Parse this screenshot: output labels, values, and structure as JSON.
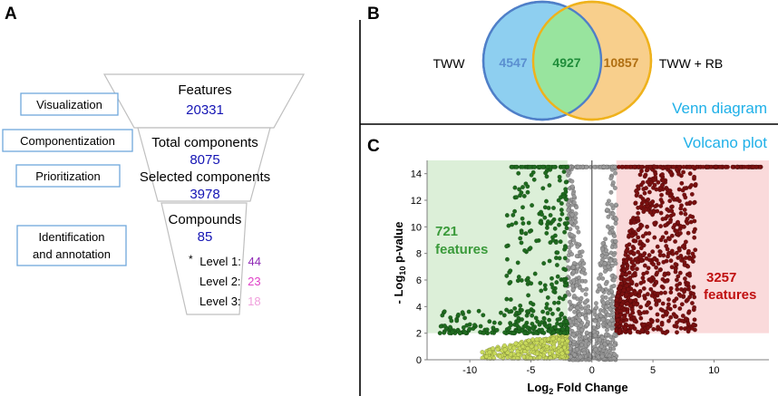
{
  "panel_a": {
    "letter": "A",
    "stages": [
      {
        "label": "Visualization"
      },
      {
        "label": "Componentization"
      },
      {
        "label": "Prioritization"
      },
      {
        "label_lines": [
          "Identification",
          "and annotation"
        ]
      }
    ],
    "funnel": {
      "features": {
        "title": "Features",
        "value": "20331"
      },
      "total_components": {
        "title": "Total components",
        "value": "8075"
      },
      "selected_components": {
        "title": "Selected components",
        "value": "3978"
      },
      "compounds": {
        "title": "Compounds",
        "value": "85"
      },
      "levels": [
        {
          "marker": "*",
          "label": "Level 1:",
          "value": "44"
        },
        {
          "label": "Level 2:",
          "value": "23"
        },
        {
          "label": "Level 3:",
          "value": "18"
        }
      ]
    }
  },
  "panel_b": {
    "letter": "B",
    "title": "Venn diagram",
    "left_label": "TWW",
    "right_label": "TWW + RB",
    "left_only": "4547",
    "overlap": "4927",
    "right_only": "10857"
  },
  "panel_c": {
    "letter": "C",
    "title": "Volcano plot",
    "left_annotation": {
      "value": "721",
      "text": "features"
    },
    "right_annotation": {
      "value": "3257",
      "text": "features"
    }
  },
  "chart_data": {
    "type": "scatter",
    "title": "Volcano plot",
    "xlabel": "Log2 Fold Change",
    "ylabel": "- Log10 p-value",
    "xlabel_parts": {
      "base": "Log",
      "sub": "2",
      "rest": " Fold Change"
    },
    "ylabel_parts": {
      "pre": "- Log",
      "sub": "10",
      "rest": " p-value"
    },
    "xlim": [
      -13.5,
      14.5
    ],
    "ylim": [
      0,
      15
    ],
    "xticks": [
      -10,
      -5,
      0,
      5,
      10
    ],
    "yticks": [
      0,
      2,
      4,
      6,
      8,
      10,
      12,
      14
    ],
    "fold_change_threshold": [
      -2,
      2
    ],
    "pvalue_threshold": 2,
    "regions": [
      {
        "name": "down-regulated",
        "x": [
          -13.5,
          -2
        ],
        "y": [
          2,
          15
        ],
        "color": "#dcefd8"
      },
      {
        "name": "up-regulated",
        "x": [
          2,
          14.5
        ],
        "y": [
          2,
          15
        ],
        "color": "#fadadb"
      }
    ],
    "series": [
      {
        "name": "down-regulated",
        "color": "#1f6b1f",
        "count": 721
      },
      {
        "name": "up-regulated",
        "color": "#7a1010",
        "count": 3257
      },
      {
        "name": "low-significance negative",
        "color": "#c8d95a"
      },
      {
        "name": "not significant",
        "color": "#9a9a9a"
      }
    ]
  },
  "colors": {
    "funnel_value": "#1414b4",
    "stage_box_border": "#6fa8dc",
    "venn_left": "#8ecff0",
    "venn_left_edge": "#4f7fc8",
    "venn_right": "#f8cf8c",
    "venn_right_edge": "#efb21c",
    "venn_overlap": "#98e49e",
    "venn_left_text": "#5b8fd0",
    "venn_overlap_text": "#1f8c3a",
    "venn_right_text": "#b06f12",
    "title_cyan": "#1fb0e8",
    "level1": "#8e29b5",
    "level2": "#e040c8",
    "level3": "#f0a0dc",
    "green_anno": "#3a9a3a",
    "red_anno": "#c01010"
  }
}
